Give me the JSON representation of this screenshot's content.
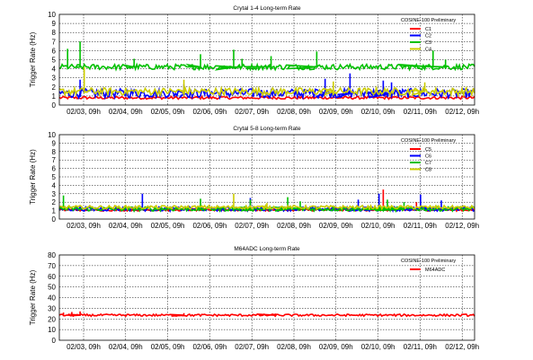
{
  "chart_data": [
    {
      "type": "line",
      "title": "Crytal 1-4 Long-term Rate",
      "ylabel": "Trigger Rate (Hz)",
      "xlabel": "",
      "ylim": [
        0,
        10
      ],
      "yticks": [
        "0",
        "1",
        "2",
        "3",
        "4",
        "5",
        "6",
        "7",
        "8",
        "9",
        "10"
      ],
      "x_tick_labels": [
        "02/03, 09h",
        "02/04, 09h",
        "02/05, 09h",
        "02/06, 09h",
        "02/07, 09h",
        "02/08, 09h",
        "02/09, 09h",
        "02/10, 09h",
        "02/11, 09h",
        "02/12, 09h"
      ],
      "grid": true,
      "legend_title": "COSINE-100 Preliminary",
      "legend_position": "top-right",
      "series": [
        {
          "name": "C1",
          "color": "#ff0000",
          "baseline": 0.8,
          "noise": 0.15,
          "spikes": []
        },
        {
          "name": "C2",
          "color": "#0000ff",
          "baseline": 1.3,
          "noise": 0.5,
          "spikes": [
            [
              0.05,
              2.8
            ],
            [
              0.3,
              2.3
            ],
            [
              0.64,
              2.9
            ],
            [
              0.7,
              3.5
            ],
            [
              0.78,
              2.7
            ],
            [
              0.8,
              2.5
            ]
          ]
        },
        {
          "name": "C3",
          "color": "#00c000",
          "baseline": 4.2,
          "noise": 0.3,
          "spikes": [
            [
              0.02,
              6.2
            ],
            [
              0.05,
              7.0
            ],
            [
              0.18,
              5.1
            ],
            [
              0.34,
              5.6
            ],
            [
              0.42,
              6.1
            ],
            [
              0.44,
              5.1
            ],
            [
              0.51,
              5.4
            ],
            [
              0.62,
              5.9
            ],
            [
              0.9,
              6.0
            ],
            [
              0.93,
              5.0
            ]
          ]
        },
        {
          "name": "C4",
          "color": "#cccc00",
          "baseline": 1.5,
          "noise": 0.4,
          "spikes": [
            [
              0.06,
              4.2
            ],
            [
              0.3,
              2.8
            ],
            [
              0.66,
              2.6
            ],
            [
              0.88,
              2.5
            ]
          ]
        }
      ]
    },
    {
      "type": "line",
      "title": "Crytal 5-8 Long-term Rate",
      "ylabel": "Trigger Rate (Hz)",
      "xlabel": "",
      "ylim": [
        0,
        10
      ],
      "yticks": [
        "0",
        "1",
        "2",
        "3",
        "4",
        "5",
        "6",
        "7",
        "8",
        "9",
        "10"
      ],
      "x_tick_labels": [
        "02/03, 09h",
        "02/04, 09h",
        "02/05, 09h",
        "02/06, 09h",
        "02/07, 09h",
        "02/08, 09h",
        "02/09, 09h",
        "02/10, 09h",
        "02/11, 09h",
        "02/12, 09h"
      ],
      "grid": true,
      "legend_title": "COSINE-100 Preliminary",
      "legend_position": "top-right",
      "series": [
        {
          "name": "C5",
          "color": "#ff0000",
          "baseline": 1.1,
          "noise": 0.15,
          "spikes": [
            [
              0.78,
              3.5
            ],
            [
              0.86,
              2.0
            ]
          ]
        },
        {
          "name": "C6",
          "color": "#0000ff",
          "baseline": 1.2,
          "noise": 0.25,
          "spikes": [
            [
              0.2,
              3.0
            ],
            [
              0.46,
              2.5
            ],
            [
              0.72,
              2.3
            ],
            [
              0.77,
              3.0
            ],
            [
              0.87,
              2.9
            ],
            [
              0.92,
              2.2
            ]
          ]
        },
        {
          "name": "C7",
          "color": "#00c000",
          "baseline": 1.2,
          "noise": 0.25,
          "spikes": [
            [
              0.01,
              2.8
            ],
            [
              0.34,
              2.4
            ],
            [
              0.46,
              2.3
            ],
            [
              0.55,
              2.6
            ],
            [
              0.58,
              2.1
            ],
            [
              0.79,
              2.3
            ],
            [
              0.83,
              2.0
            ]
          ]
        },
        {
          "name": "C8",
          "color": "#cccc00",
          "baseline": 1.4,
          "noise": 0.2,
          "spikes": [
            [
              0.42,
              3.0
            ],
            [
              0.5,
              1.9
            ]
          ]
        }
      ]
    },
    {
      "type": "line",
      "title": "M64ADC Long-term Rate",
      "ylabel": "Trigger Rate (Hz)",
      "xlabel": "",
      "ylim": [
        0,
        80
      ],
      "yticks": [
        "0",
        "10",
        "20",
        "30",
        "40",
        "50",
        "60",
        "70",
        "80"
      ],
      "x_tick_labels": [
        "02/03, 09h",
        "02/04, 09h",
        "02/05, 09h",
        "02/06, 09h",
        "02/07, 09h",
        "02/08, 09h",
        "02/09, 09h",
        "02/10, 09h",
        "02/11, 09h",
        "02/12, 09h"
      ],
      "grid": true,
      "legend_title": "COSINE-100 Preliminary",
      "legend_position": "top-right",
      "series": [
        {
          "name": "M64ADC",
          "color": "#ff0000",
          "baseline": 23.5,
          "noise": 1.0,
          "spikes": [
            [
              0.01,
              26.0
            ],
            [
              0.03,
              26.5
            ],
            [
              0.05,
              27.0
            ],
            [
              0.3,
              25.5
            ],
            [
              0.52,
              25.0
            ]
          ]
        }
      ]
    }
  ]
}
